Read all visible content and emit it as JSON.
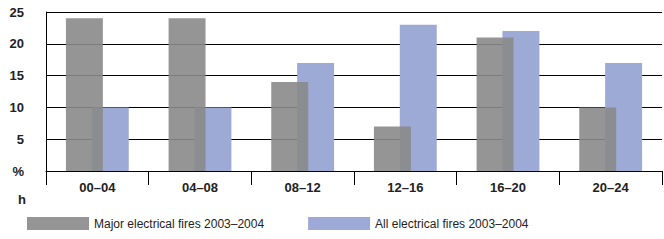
{
  "chart_data": {
    "type": "bar",
    "xlabel": "h",
    "categories": [
      "00–04",
      "04–08",
      "08–12",
      "12–16",
      "16–20",
      "20–24"
    ],
    "series": [
      {
        "name": "Major electrical fires 2003–2004",
        "color": "#8a8a89",
        "values": [
          24,
          24,
          14,
          7,
          21,
          10
        ]
      },
      {
        "name": "All electrical fires 2003–2004",
        "color": "#9eaad6",
        "values": [
          10,
          10,
          17,
          23,
          22,
          17
        ]
      }
    ],
    "ylim": [
      0,
      25
    ],
    "yticks": [
      {
        "value": 0,
        "label": "%"
      },
      5,
      10,
      15,
      20,
      25
    ],
    "grid": true,
    "legend": "bottom left"
  }
}
